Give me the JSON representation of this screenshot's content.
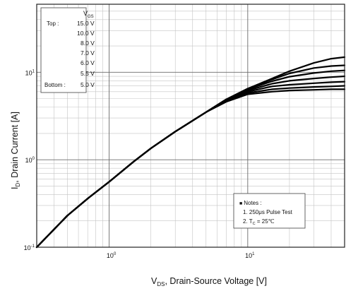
{
  "chart_data": {
    "type": "line",
    "title": "",
    "xlabel": {
      "main": "V",
      "sub": "DS",
      "rest": ", Drain-Source Voltage [V]"
    },
    "ylabel": {
      "main": "I",
      "sub": "D",
      "rest": ", Drain Current [A]"
    },
    "x_scale": "log",
    "y_scale": "log",
    "xlim": [
      0.3,
      50
    ],
    "ylim": [
      0.1,
      60
    ],
    "x_ticks": [
      {
        "value": 1,
        "base": "10",
        "exp": "0"
      },
      {
        "value": 10,
        "base": "10",
        "exp": "1"
      }
    ],
    "y_ticks": [
      {
        "value": 0.1,
        "base": "10",
        "exp": "-1"
      },
      {
        "value": 1,
        "base": "10",
        "exp": "0"
      },
      {
        "value": 10,
        "base": "10",
        "exp": "1"
      }
    ],
    "grid": true,
    "legend": {
      "placement": "top-left",
      "header": {
        "main": "V",
        "sub": "GS"
      },
      "top_label": "Top :",
      "bottom_label": "Bottom :",
      "entries": [
        "15.0 V",
        "10.0 V",
        "8.0 V",
        "7.0 V",
        "6.0 V",
        "5.5 V",
        "5.0 V"
      ]
    },
    "notes": {
      "placement": "bottom-right",
      "bullet": "■",
      "heading": "Notes :",
      "line1": "1. 250μs Pulse Test",
      "line2": {
        "pre": "2. T",
        "sub": "C",
        "post": " = 25℃"
      }
    },
    "series": [
      {
        "x": [
          0.3,
          0.5,
          0.7,
          1,
          1.5,
          2,
          3,
          5,
          7,
          10,
          15,
          20,
          30,
          40,
          50
        ],
        "y": [
          0.1,
          0.23,
          0.36,
          0.56,
          0.95,
          1.35,
          2.1,
          3.5,
          4.9,
          6.5,
          8.5,
          10.3,
          12.8,
          14.3,
          14.9
        ]
      },
      {
        "x": [
          0.3,
          0.5,
          0.7,
          1,
          1.5,
          2,
          3,
          5,
          7,
          10,
          15,
          20,
          30,
          40,
          50
        ],
        "y": [
          0.1,
          0.23,
          0.36,
          0.56,
          0.95,
          1.35,
          2.1,
          3.5,
          4.9,
          6.5,
          8.3,
          9.7,
          11.2,
          11.8,
          12.0
        ]
      },
      {
        "x": [
          0.3,
          0.5,
          0.7,
          1,
          1.5,
          2,
          3,
          5,
          7,
          10,
          15,
          20,
          30,
          40,
          50
        ],
        "y": [
          0.1,
          0.23,
          0.36,
          0.56,
          0.95,
          1.35,
          2.1,
          3.5,
          4.9,
          6.4,
          7.9,
          8.9,
          9.8,
          10.3,
          10.5
        ]
      },
      {
        "x": [
          0.3,
          0.5,
          0.7,
          1,
          1.5,
          2,
          3,
          5,
          7,
          10,
          15,
          20,
          30,
          40,
          50
        ],
        "y": [
          0.1,
          0.23,
          0.36,
          0.56,
          0.95,
          1.35,
          2.1,
          3.5,
          4.8,
          6.2,
          7.4,
          8.0,
          8.5,
          8.8,
          9.0
        ]
      },
      {
        "x": [
          0.3,
          0.5,
          0.7,
          1,
          1.5,
          2,
          3,
          5,
          7,
          10,
          15,
          20,
          30,
          40,
          50
        ],
        "y": [
          0.1,
          0.23,
          0.36,
          0.56,
          0.95,
          1.35,
          2.1,
          3.5,
          4.8,
          6.0,
          6.9,
          7.2,
          7.5,
          7.7,
          7.8
        ]
      },
      {
        "x": [
          0.3,
          0.5,
          0.7,
          1,
          1.5,
          2,
          3,
          5,
          7,
          10,
          15,
          20,
          30,
          40,
          50
        ],
        "y": [
          0.1,
          0.23,
          0.36,
          0.56,
          0.95,
          1.35,
          2.1,
          3.5,
          4.7,
          5.8,
          6.4,
          6.6,
          6.8,
          6.9,
          7.0
        ]
      },
      {
        "x": [
          0.3,
          0.5,
          0.7,
          1,
          1.5,
          2,
          3,
          5,
          7,
          10,
          15,
          20,
          30,
          40,
          50
        ],
        "y": [
          0.1,
          0.23,
          0.36,
          0.56,
          0.95,
          1.35,
          2.1,
          3.5,
          4.6,
          5.6,
          6.0,
          6.2,
          6.3,
          6.4,
          6.4
        ]
      }
    ]
  }
}
